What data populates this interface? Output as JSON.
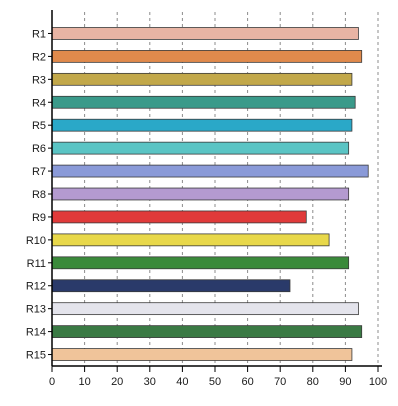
{
  "chart_data": {
    "type": "bar",
    "orientation": "horizontal",
    "title": "",
    "xlabel": "",
    "ylabel": "",
    "xlim": [
      0,
      100
    ],
    "xticks": [
      "0",
      "10",
      "20",
      "30",
      "40",
      "50",
      "60",
      "70",
      "80",
      "90",
      "100"
    ],
    "grid": true,
    "categories": [
      "R1",
      "R2",
      "R3",
      "R4",
      "R5",
      "R6",
      "R7",
      "R8",
      "R9",
      "R10",
      "R11",
      "R12",
      "R13",
      "R14",
      "R15"
    ],
    "values": [
      94,
      95,
      92,
      93,
      92,
      91,
      97,
      91,
      78,
      85,
      91,
      73,
      94,
      95,
      92
    ],
    "colors": [
      "#e8b4a4",
      "#e08a4c",
      "#c2a84a",
      "#3a9a8a",
      "#2aa8c8",
      "#5ac4c4",
      "#8a9ad8",
      "#b49ad0",
      "#e03a3a",
      "#e8d84a",
      "#3a8a3a",
      "#2a3a6a",
      "#e4e4ec",
      "#3a7a44",
      "#f0c49a"
    ]
  }
}
